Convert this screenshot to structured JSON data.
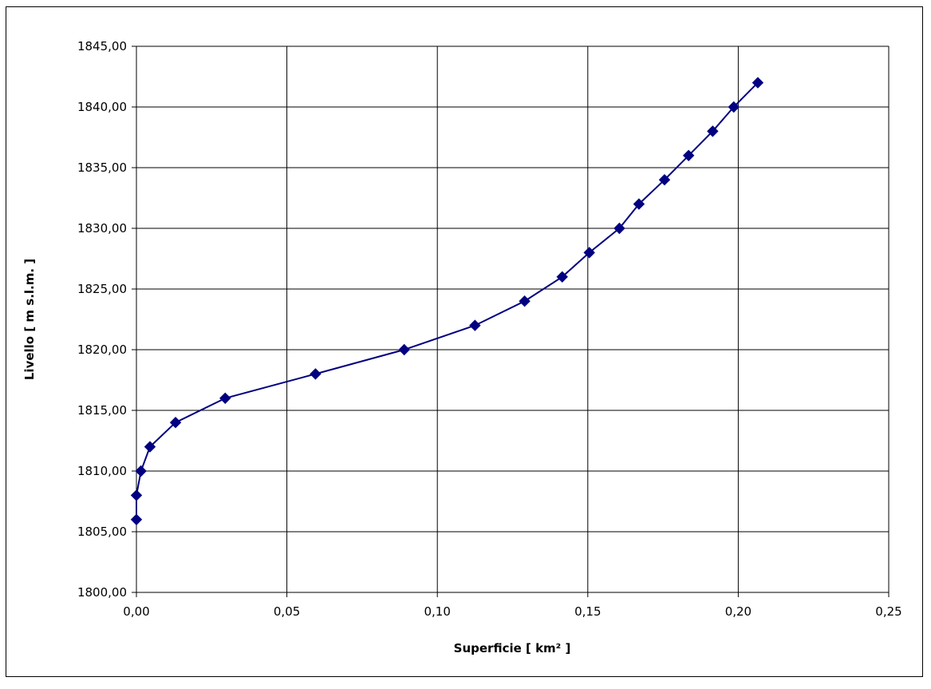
{
  "chart_data": {
    "type": "line",
    "title": "",
    "xlabel": "Superficie [ km² ]",
    "ylabel": "Livello [ m s.l.m. ]",
    "xlim": [
      0,
      0.25
    ],
    "ylim": [
      1800,
      1845
    ],
    "xticks": [
      "0,00",
      "0,05",
      "0,10",
      "0,15",
      "0,20",
      "0,25"
    ],
    "yticks": [
      "1800,00",
      "1805,00",
      "1810,00",
      "1815,00",
      "1820,00",
      "1825,00",
      "1830,00",
      "1835,00",
      "1840,00",
      "1845,00"
    ],
    "xtick_values": [
      0,
      0.05,
      0.1,
      0.15,
      0.2,
      0.25
    ],
    "ytick_values": [
      1800,
      1805,
      1810,
      1815,
      1820,
      1825,
      1830,
      1835,
      1840,
      1845
    ],
    "grid": true,
    "legend": "none",
    "series": [
      {
        "color": "#000080",
        "marker": "diamond",
        "x": [
          0.0,
          0.0,
          0.0015,
          0.0045,
          0.013,
          0.0295,
          0.0595,
          0.089,
          0.1125,
          0.129,
          0.1415,
          0.1505,
          0.1605,
          0.167,
          0.1755,
          0.1835,
          0.1915,
          0.1985,
          0.2065
        ],
        "y": [
          1806,
          1808,
          1810,
          1812,
          1814,
          1816,
          1818,
          1820,
          1822,
          1824,
          1826,
          1828,
          1830,
          1832,
          1834,
          1836,
          1838,
          1840,
          1842
        ]
      }
    ]
  }
}
